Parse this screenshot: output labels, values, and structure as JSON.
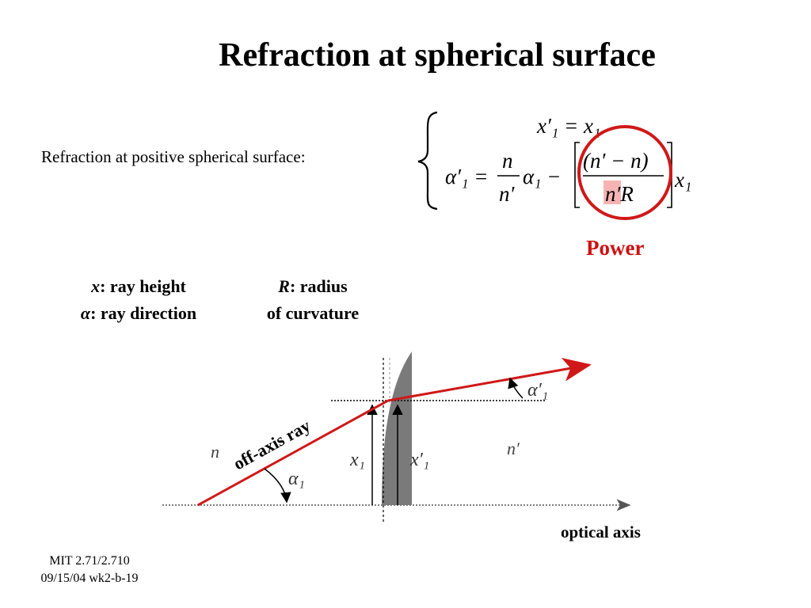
{
  "slide": {
    "title": "Refraction at spherical surface",
    "intro": "Refraction at positive spherical surface:",
    "power_label": "Power"
  },
  "equation": {
    "line1": "x′₁ = x₁",
    "line2_lhs": "α′₁ =",
    "frac1_num": "n",
    "frac1_den": "n′",
    "alpha1": "α₁ −",
    "frac2_num": "(n′ − n)",
    "frac2_den": "n′R",
    "x1": "x₁"
  },
  "legend": {
    "x_var": "x",
    "x_desc": ": ray height",
    "alpha_var": "α",
    "alpha_desc": ": ray direction",
    "r_var": "R",
    "r_desc": ": radius",
    "r_desc2": "of curvature"
  },
  "diagram": {
    "ray_label": "off-axis ray",
    "n_left": "n",
    "n_right": "n′",
    "x1_label": "x₁",
    "x1p_label": "x′₁",
    "alpha1_label": "α₁",
    "alpha1p_label": "α′₁",
    "axis_label": "optical axis"
  },
  "colors": {
    "ray": "#d01818",
    "power": "#cc1111",
    "lens": "#7a7a7a"
  },
  "footer": {
    "line1": "MIT 2.71/2.710",
    "line2": "09/15/04 wk2-b-19"
  }
}
